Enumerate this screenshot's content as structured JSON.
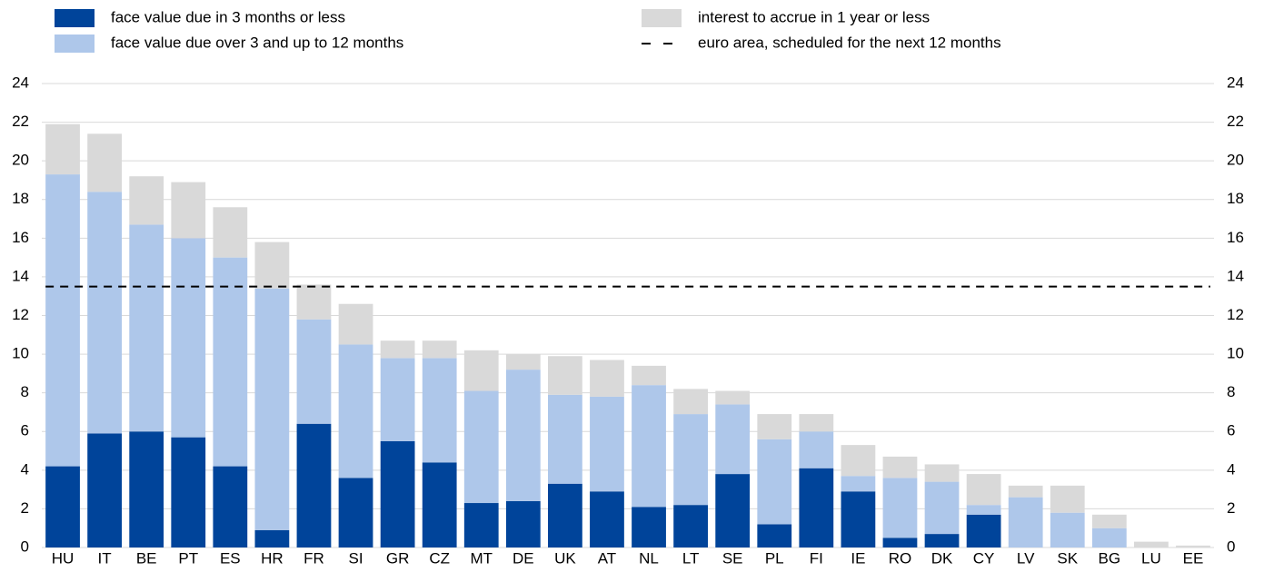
{
  "chart_data": {
    "type": "stacked-bar",
    "categories": [
      "HU",
      "IT",
      "BE",
      "PT",
      "ES",
      "HR",
      "FR",
      "SI",
      "GR",
      "CZ",
      "MT",
      "DE",
      "UK",
      "AT",
      "NL",
      "LT",
      "SE",
      "PL",
      "FI",
      "IE",
      "RO",
      "DK",
      "CY",
      "LV",
      "SK",
      "BG",
      "LU",
      "EE"
    ],
    "series": [
      {
        "name": "face value due in 3 months or less",
        "color": "#00449a",
        "values": [
          4.2,
          5.9,
          6.0,
          5.7,
          4.2,
          0.9,
          6.4,
          3.6,
          5.5,
          4.4,
          2.3,
          2.4,
          3.3,
          2.9,
          2.1,
          2.2,
          3.8,
          1.2,
          4.1,
          2.9,
          0.5,
          0.7,
          1.7,
          0,
          0,
          0,
          0,
          0
        ]
      },
      {
        "name": "face value due over 3 and up to 12 months",
        "color": "#aec7ea",
        "values": [
          15.1,
          12.5,
          10.7,
          10.3,
          10.8,
          12.5,
          5.4,
          6.9,
          4.3,
          5.4,
          5.8,
          6.8,
          4.6,
          4.9,
          6.3,
          4.7,
          3.6,
          4.4,
          1.9,
          0.8,
          3.1,
          2.7,
          0.5,
          2.6,
          1.8,
          1.0,
          0,
          0
        ]
      },
      {
        "name": "interest to accrue in 1 year or less",
        "color": "#d9d9d9",
        "values": [
          2.6,
          3.0,
          2.5,
          2.9,
          2.6,
          2.4,
          1.8,
          2.1,
          0.9,
          0.9,
          2.1,
          0.8,
          2.0,
          1.9,
          1.0,
          1.3,
          0.7,
          1.3,
          0.9,
          1.6,
          1.1,
          0.9,
          1.6,
          0.6,
          1.4,
          0.7,
          0.3,
          0.1
        ]
      }
    ],
    "reference_line": {
      "name": "euro area, scheduled for the next 12 months",
      "value": 13.5,
      "color": "#000000"
    },
    "ylim": [
      0,
      24
    ],
    "yticks": [
      0,
      2,
      4,
      6,
      8,
      10,
      12,
      14,
      16,
      18,
      20,
      22,
      24
    ],
    "y2lim": [
      0,
      24
    ],
    "y2ticks": [
      0,
      2,
      4,
      6,
      8,
      10,
      12,
      14,
      16,
      18,
      20,
      22,
      24
    ],
    "grid": true
  }
}
